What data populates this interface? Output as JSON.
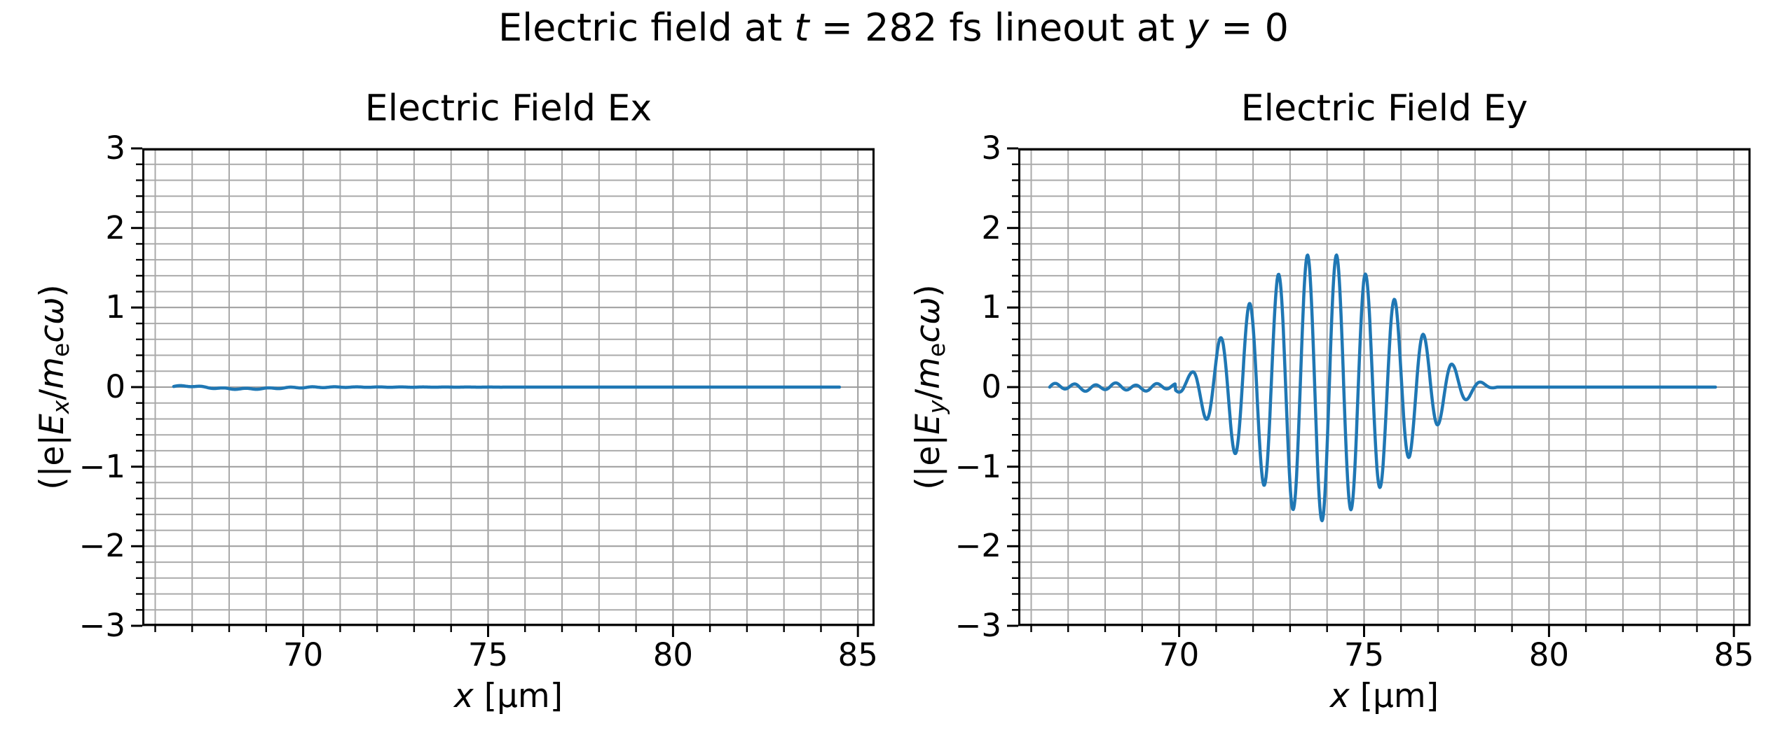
{
  "figure_title": {
    "text": "Electric field at t = 282 fs lineout at y = 0",
    "parts": [
      {
        "t": "Electric field at "
      },
      {
        "t": "t",
        "i": 1
      },
      {
        "t": " = 282 fs lineout at "
      },
      {
        "t": "y",
        "i": 1
      },
      {
        "t": " = 0"
      }
    ]
  },
  "colors": {
    "line": "#1f77b4",
    "grid": "#aaaaaa",
    "grid_major": "#9c9c9c",
    "spine": "#000000",
    "background": "#ffffff"
  },
  "chart_data": [
    {
      "type": "line",
      "panel": "Ex",
      "title": "Electric Field Ex",
      "xlabel": {
        "text": "x [µm]",
        "parts": [
          {
            "t": "x",
            "i": 1
          },
          {
            "t": " [µm]"
          }
        ]
      },
      "ylabel": {
        "text": "(|e|Ex/mecω)",
        "parts": [
          {
            "t": "(|e|"
          },
          {
            "t": "E",
            "i": 1
          },
          {
            "t": "x",
            "i": 1,
            "s": 1
          },
          {
            "t": "/"
          },
          {
            "t": "m",
            "i": 1
          },
          {
            "t": "e",
            "s": 1
          },
          {
            "t": "c",
            "i": 1
          },
          {
            "t": "ω",
            "i": 1
          },
          {
            "t": ")"
          }
        ]
      },
      "xlim": [
        65.65,
        85.45
      ],
      "ylim": [
        -3,
        3
      ],
      "xticks": {
        "major": [
          70,
          75,
          80,
          85
        ],
        "labels": [
          "70",
          "75",
          "80",
          "85"
        ],
        "minor_step": 1
      },
      "yticks": {
        "major": [
          -3,
          -2,
          -1,
          0,
          1,
          2,
          3
        ],
        "labels": [
          "−3",
          "−2",
          "−1",
          "0",
          "1",
          "2",
          "3"
        ],
        "minor_step": 0.2
      },
      "grid": "both",
      "series": {
        "name": "Ex",
        "x_start": 66.5,
        "x_end": 84.5,
        "summary": "essentially zero everywhere; tiny ripple (|Ex| < 0.03) near x = 67-70 um, flat 0 for x > 70 um",
        "model": {
          "kind": "near_zero",
          "bumps": [
            {
              "c": 66.9,
              "w": 0.5,
              "a": 0.018
            },
            {
              "c": 68.4,
              "w": 1.2,
              "a": -0.022
            }
          ],
          "wiggle": {
            "a": 0.007,
            "p": 0.6,
            "damp_after": 70,
            "damp_len": 2.0
          }
        }
      }
    },
    {
      "type": "line",
      "panel": "Ey",
      "title": "Electric Field Ey",
      "xlabel": {
        "text": "x [µm]",
        "parts": [
          {
            "t": "x",
            "i": 1
          },
          {
            "t": " [µm]"
          }
        ]
      },
      "ylabel": {
        "text": "(|e|Ey/mecω)",
        "parts": [
          {
            "t": "(|e|"
          },
          {
            "t": "E",
            "i": 1
          },
          {
            "t": "y",
            "i": 1,
            "s": 1
          },
          {
            "t": "/"
          },
          {
            "t": "m",
            "i": 1
          },
          {
            "t": "e",
            "s": 1
          },
          {
            "t": "c",
            "i": 1
          },
          {
            "t": "ω",
            "i": 1
          },
          {
            "t": ")"
          }
        ]
      },
      "xlim": [
        65.65,
        85.45
      ],
      "ylim": [
        -3,
        3
      ],
      "xticks": {
        "major": [
          70,
          75,
          80,
          85
        ],
        "labels": [
          "70",
          "75",
          "80",
          "85"
        ],
        "minor_step": 1
      },
      "yticks": {
        "major": [
          -3,
          -2,
          -1,
          0,
          1,
          2,
          3
        ],
        "labels": [
          "−3",
          "−2",
          "−1",
          "0",
          "1",
          "2",
          "3"
        ],
        "minor_step": 0.2
      },
      "grid": "both",
      "series": {
        "name": "Ey",
        "x_start": 66.5,
        "x_end": 84.5,
        "summary": "laser wave packet: small ripple (+-0.05) for 66.5-70 um, oscillating pulse (period ~0.785 um) peaking at ~1.68 near x = 73.9 um, zero for x > 78.6 um",
        "peaks": [
          [
            70.33,
            0.18
          ],
          [
            71.12,
            0.62
          ],
          [
            71.9,
            1.05
          ],
          [
            72.69,
            1.42
          ],
          [
            73.47,
            1.66
          ],
          [
            74.26,
            1.66
          ],
          [
            75.04,
            1.42
          ],
          [
            75.83,
            1.1
          ],
          [
            76.61,
            0.66
          ],
          [
            77.4,
            0.28
          ]
        ],
        "troughs": [
          [
            70.72,
            -0.35
          ],
          [
            71.51,
            -0.85
          ],
          [
            72.29,
            -1.25
          ],
          [
            73.08,
            -1.55
          ],
          [
            73.86,
            -1.68
          ],
          [
            74.65,
            -1.55
          ],
          [
            75.43,
            -1.27
          ],
          [
            76.22,
            -0.89
          ],
          [
            77.0,
            -0.47
          ],
          [
            77.79,
            -0.18
          ]
        ],
        "model": {
          "kind": "wave_packet",
          "ripple": {
            "a1": 0.038,
            "p1": 0.55,
            "a2": 0.015,
            "p2": 1.4,
            "until": 69.9
          },
          "envelope": [
            [
              69.9,
              0.04
            ],
            [
              70.33,
              0.18
            ],
            [
              71.12,
              0.62
            ],
            [
              71.9,
              1.05
            ],
            [
              72.69,
              1.42
            ],
            [
              73.47,
              1.66
            ],
            [
              73.86,
              1.68
            ],
            [
              74.26,
              1.66
            ],
            [
              75.04,
              1.42
            ],
            [
              75.83,
              1.1
            ],
            [
              76.61,
              0.66
            ],
            [
              77.4,
              0.28
            ],
            [
              77.95,
              0.1
            ],
            [
              78.4,
              0.02
            ],
            [
              78.6,
              0.0
            ]
          ],
          "carrier": {
            "peak_x": 73.47,
            "wavelength": 0.785
          },
          "zero_after": 78.6
        }
      }
    }
  ]
}
